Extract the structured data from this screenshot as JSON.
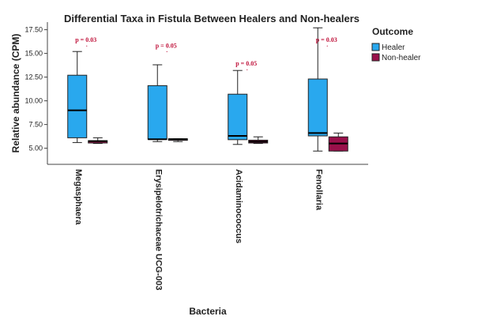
{
  "chart_data": {
    "type": "boxplot",
    "title": "Differential Taxa in Fistula Between Healers and Non-healers",
    "xlabel": "Bacteria",
    "ylabel": "Relative abundance (CPM)",
    "ylim": [
      3.3,
      18.3
    ],
    "yticks": [
      "5.00",
      "7.50",
      "10.00",
      "12.50",
      "15.00",
      "17.50"
    ],
    "ytick_values": [
      5,
      7.5,
      10,
      12.5,
      15,
      17.5
    ],
    "categories": [
      "Megasphaera",
      "Erysipelotrichaceae UCG-003",
      "Acidaminococcus",
      "Fenollaria"
    ],
    "legend": {
      "title": "Outcome",
      "position": "top-right"
    },
    "series": [
      {
        "name": "Healer",
        "color": "#29a8ee",
        "boxes": [
          {
            "min": 5.6,
            "q1": 6.1,
            "median": 9.0,
            "q3": 12.7,
            "max": 15.2
          },
          {
            "min": 5.7,
            "q1": 5.95,
            "median": 5.95,
            "q3": 11.6,
            "max": 13.8
          },
          {
            "min": 5.4,
            "q1": 5.9,
            "median": 6.3,
            "q3": 10.7,
            "max": 13.2
          },
          {
            "min": 4.7,
            "q1": 6.3,
            "median": 6.6,
            "q3": 12.3,
            "max": 17.7
          }
        ]
      },
      {
        "name": "Non-healer",
        "color": "#99104a",
        "boxes": [
          {
            "min": 5.5,
            "q1": 5.55,
            "median": 5.75,
            "q3": 5.8,
            "max": 6.1
          },
          {
            "min": 5.7,
            "q1": 5.85,
            "median": 5.95,
            "q3": 6.0,
            "max": 6.0
          },
          {
            "min": 5.5,
            "q1": 5.55,
            "median": 5.7,
            "q3": 5.85,
            "max": 6.2
          },
          {
            "min": 4.7,
            "q1": 4.7,
            "median": 5.5,
            "q3": 6.2,
            "max": 6.6
          }
        ]
      }
    ],
    "annotations": [
      {
        "text": "p = 0.03",
        "category": "Megasphaera",
        "y": 16.2
      },
      {
        "text": "p = 0.05",
        "category": "Erysipelotrichaceae UCG-003",
        "y": 15.6
      },
      {
        "text": "p = 0.05",
        "category": "Acidaminococcus",
        "y": 13.7
      },
      {
        "text": "p = 0.03",
        "category": "Fenollaria",
        "y": 16.2
      }
    ]
  }
}
